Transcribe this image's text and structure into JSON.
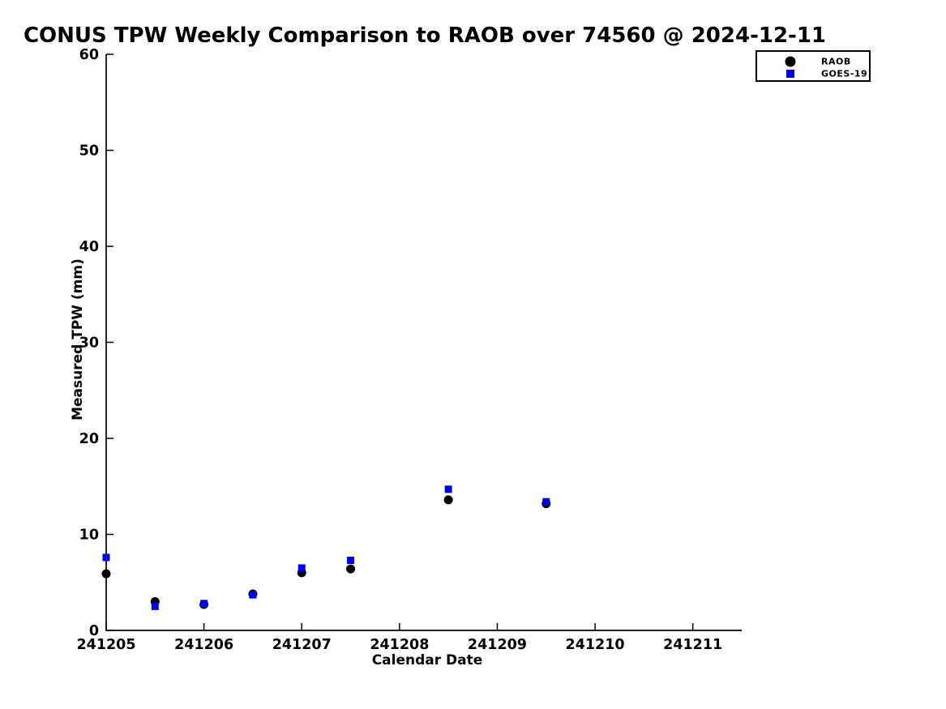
{
  "page": {
    "background_color": "#ffffff",
    "text_color": "#000000"
  },
  "chart_data": {
    "type": "scatter",
    "title": "CONUS TPW Weekly Comparison to RAOB over 74560 @ 2024-12-11",
    "xlabel": "Calendar Date",
    "ylabel": "Measured TPW (mm)",
    "xlim": [
      241205,
      241211.5
    ],
    "ylim": [
      0,
      60
    ],
    "xticks": [
      241205,
      241206,
      241207,
      241208,
      241209,
      241210,
      241211
    ],
    "yticks": [
      0,
      10,
      20,
      30,
      40,
      50,
      60
    ],
    "grid": false,
    "axis_color": "#000000",
    "legend_position": "top-right",
    "series": [
      {
        "name": "RAOB",
        "marker": "circle",
        "color": "#000000",
        "marker_size_px": 11,
        "x": [
          241205,
          241205.5,
          241206,
          241206.5,
          241207,
          241207.5,
          241208.5,
          241209.5
        ],
        "y": [
          5.9,
          3.0,
          2.7,
          3.8,
          6.0,
          6.4,
          13.6,
          13.2
        ]
      },
      {
        "name": "GOES-19",
        "marker": "square",
        "color": "#0000ee",
        "marker_size_px": 9,
        "x": [
          241205,
          241205.5,
          241206,
          241206.5,
          241207,
          241207.5,
          241208.5,
          241209.5
        ],
        "y": [
          7.6,
          2.5,
          2.8,
          3.7,
          6.5,
          7.3,
          14.7,
          13.4
        ]
      }
    ]
  }
}
